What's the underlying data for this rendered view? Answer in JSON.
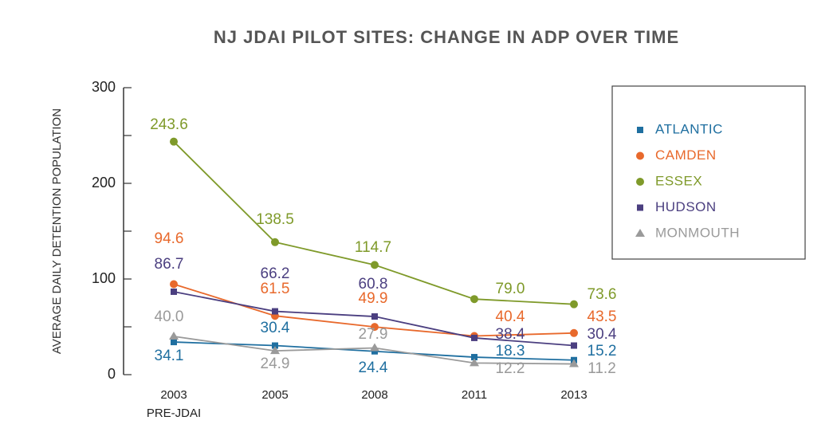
{
  "chart_data": {
    "type": "line",
    "title": "NJ JDAI PILOT SITES: CHANGE IN ADP OVER TIME",
    "y_label": "AVERAGE DAILY DETENTION POPULATION",
    "categories": [
      "2003",
      "2005",
      "2008",
      "2011",
      "2013"
    ],
    "x_sublabels": [
      "PRE-JDAI",
      null,
      null,
      null,
      null
    ],
    "ylim": [
      0,
      300
    ],
    "yticks": [
      0,
      100,
      200,
      300
    ],
    "yminorticks": [
      50,
      150,
      250
    ],
    "legend": "top-right",
    "series": [
      {
        "name": "ATLANTIC",
        "color": "#1f6fa0",
        "marker": "square",
        "values": [
          34.1,
          30.4,
          24.4,
          18.3,
          15.2
        ],
        "value_labels": [
          "34.1",
          "30.4",
          "24.4",
          "18.3",
          "15.2"
        ]
      },
      {
        "name": "CAMDEN",
        "color": "#e8692c",
        "marker": "circle",
        "values": [
          94.6,
          61.5,
          49.9,
          40.4,
          43.5
        ],
        "value_labels": [
          "94.6",
          "61.5",
          "49.9",
          "40.4",
          "43.5"
        ]
      },
      {
        "name": "ESSEX",
        "color": "#7f9a2a",
        "marker": "circle",
        "values": [
          243.6,
          138.5,
          114.7,
          79.0,
          73.6
        ],
        "value_labels": [
          "243.6",
          "138.5",
          "114.7",
          "79.0",
          "73.6"
        ]
      },
      {
        "name": "HUDSON",
        "color": "#4b3f80",
        "marker": "square",
        "values": [
          86.7,
          66.2,
          60.8,
          38.4,
          30.4
        ],
        "value_labels": [
          "86.7",
          "66.2",
          "60.8",
          "38.4",
          "30.4"
        ]
      },
      {
        "name": "MONMOUTH",
        "color": "#9a9a9a",
        "marker": "triangle",
        "values": [
          40.0,
          24.9,
          27.9,
          12.2,
          11.2
        ],
        "value_labels": [
          "40.0",
          "24.9",
          "27.9",
          "12.2",
          "11.2"
        ]
      }
    ]
  }
}
